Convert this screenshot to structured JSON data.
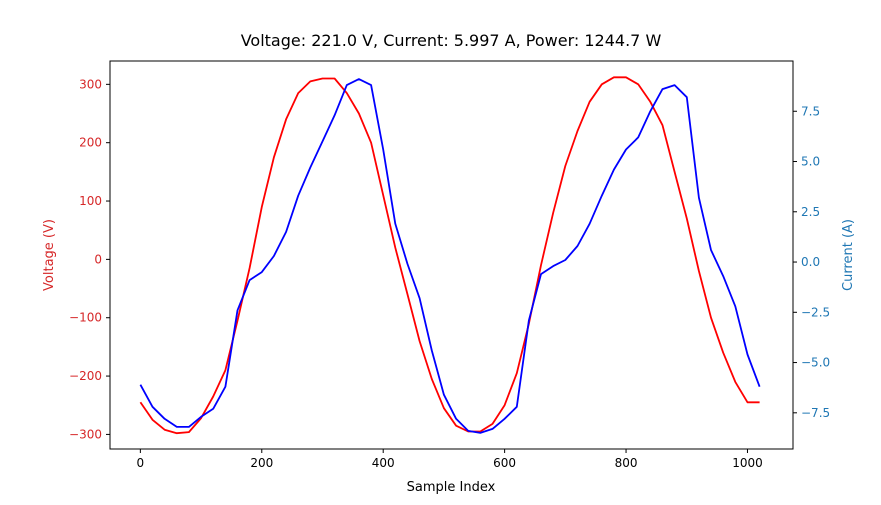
{
  "chart_data": {
    "type": "line",
    "title": "Voltage: 221.0 V, Current: 5.997 A, Power: 1244.7 W",
    "xlabel": "Sample Index",
    "xlim": [
      -50,
      1075
    ],
    "xticks": [
      0,
      200,
      400,
      600,
      800,
      1000
    ],
    "grid": false,
    "y_left": {
      "label": "Voltage (V)",
      "color": "#d62728",
      "lim": [
        -325,
        340
      ],
      "ticks": [
        -300,
        -200,
        -100,
        0,
        100,
        200,
        300
      ]
    },
    "y_right": {
      "label": "Current (A)",
      "color": "#1f77b4",
      "lim": [
        -9.3,
        10.0
      ],
      "ticks": [
        -7.5,
        -5.0,
        -2.5,
        0.0,
        2.5,
        5.0,
        7.5
      ],
      "tick_labels": [
        "−7.5",
        "−5.0",
        "−2.5",
        "0.0",
        "2.5",
        "5.0",
        "7.5"
      ]
    },
    "series": [
      {
        "axis": "left",
        "color": "#ff0000",
        "x": [
          0,
          20,
          40,
          60,
          80,
          100,
          120,
          140,
          160,
          180,
          200,
          220,
          240,
          260,
          280,
          300,
          320,
          340,
          360,
          380,
          400,
          420,
          440,
          460,
          480,
          500,
          520,
          540,
          560,
          580,
          600,
          620,
          640,
          660,
          680,
          700,
          720,
          740,
          760,
          780,
          800,
          820,
          840,
          860,
          880,
          900,
          920,
          940,
          960,
          980,
          1000,
          1020
        ],
        "y": [
          -245,
          -275,
          -292,
          -298,
          -296,
          -272,
          -235,
          -190,
          -105,
          -15,
          90,
          175,
          240,
          285,
          305,
          310,
          310,
          285,
          250,
          200,
          110,
          20,
          -60,
          -140,
          -205,
          -255,
          -285,
          -295,
          -295,
          -282,
          -250,
          -195,
          -110,
          -10,
          80,
          160,
          220,
          270,
          300,
          312,
          312,
          300,
          270,
          230,
          150,
          70,
          -20,
          -100,
          -160,
          -210,
          -245,
          -245
        ]
      },
      {
        "axis": "right",
        "color": "#0000ff",
        "x": [
          0,
          20,
          40,
          60,
          80,
          100,
          120,
          140,
          160,
          180,
          200,
          220,
          240,
          260,
          280,
          300,
          320,
          340,
          360,
          380,
          400,
          420,
          440,
          460,
          480,
          500,
          520,
          540,
          560,
          580,
          600,
          620,
          640,
          660,
          680,
          700,
          720,
          740,
          760,
          780,
          800,
          820,
          840,
          860,
          880,
          900,
          920,
          940,
          960,
          980,
          1000,
          1020
        ],
        "y": [
          -6.1,
          -7.2,
          -7.8,
          -8.2,
          -8.2,
          -7.7,
          -7.3,
          -6.2,
          -2.4,
          -0.9,
          -0.5,
          0.3,
          1.5,
          3.3,
          4.7,
          6.0,
          7.3,
          8.8,
          9.1,
          8.8,
          5.6,
          1.9,
          -0.1,
          -1.8,
          -4.4,
          -6.6,
          -7.8,
          -8.4,
          -8.5,
          -8.3,
          -7.8,
          -7.2,
          -2.9,
          -0.6,
          -0.2,
          0.1,
          0.8,
          1.9,
          3.3,
          4.6,
          5.6,
          6.2,
          7.5,
          8.6,
          8.8,
          8.2,
          3.2,
          0.6,
          -0.7,
          -2.2,
          -4.6,
          -6.2
        ]
      }
    ]
  }
}
